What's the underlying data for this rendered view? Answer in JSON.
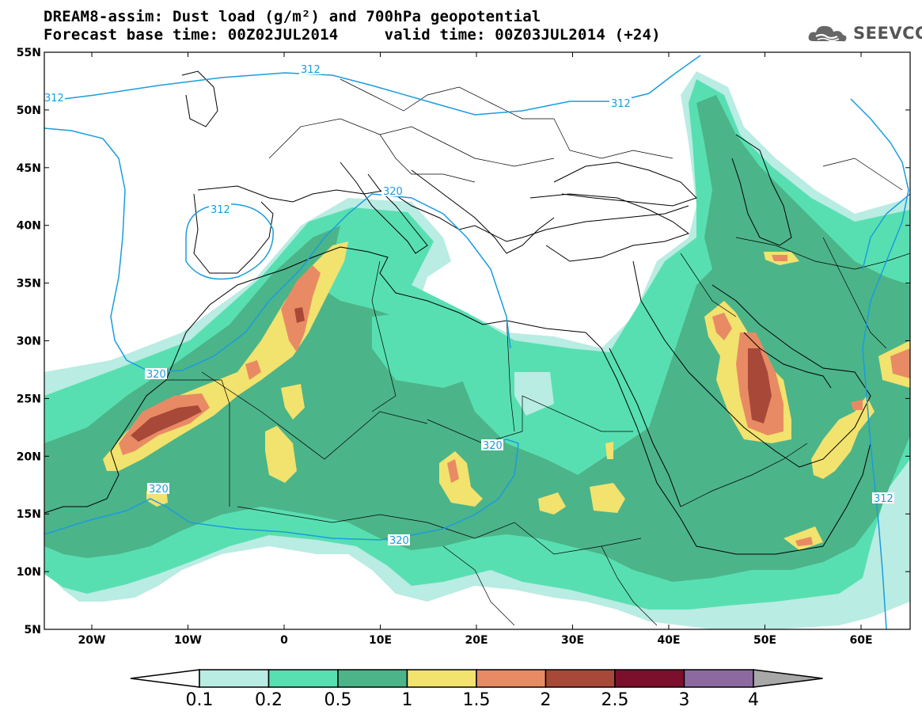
{
  "header": {
    "title_line1": "DREAM8-assim: Dust load (g/m²) and 700hPa geopotential",
    "title_line2": "Forecast base time: 00Z02JUL2014     valid time: 00Z03JUL2014 (+24)"
  },
  "logo": {
    "text": "SEEVCCC",
    "icon": "cloud-icon"
  },
  "map": {
    "lat_labels": [
      "55N",
      "50N",
      "45N",
      "40N",
      "35N",
      "30N",
      "25N",
      "20N",
      "15N",
      "10N",
      "5N"
    ],
    "lon_labels": [
      "20W",
      "10W",
      "0",
      "10E",
      "20E",
      "30E",
      "40E",
      "50E",
      "60E"
    ],
    "contour_labels": [
      {
        "text": "312",
        "contour": "north"
      },
      {
        "text": "312",
        "contour": "north-west"
      },
      {
        "text": "312",
        "contour": "north-east"
      },
      {
        "text": "312",
        "contour": "iberia"
      },
      {
        "text": "320",
        "contour": "mediterranean"
      },
      {
        "text": "320",
        "contour": "west-africa"
      },
      {
        "text": "320",
        "contour": "senegal"
      },
      {
        "text": "320",
        "contour": "sahel"
      },
      {
        "text": "320",
        "contour": "chad"
      },
      {
        "text": "312",
        "contour": "arabian-sea"
      }
    ]
  },
  "legend": {
    "title": "Dust load (g/m²)",
    "bins": [
      {
        "label": "0.1",
        "color": "#b9ece3"
      },
      {
        "label": "0.2",
        "color": "#58dfb1"
      },
      {
        "label": "0.5",
        "color": "#4cb489"
      },
      {
        "label": "1",
        "color": "#f2e26e"
      },
      {
        "label": "1.5",
        "color": "#e88b64"
      },
      {
        "label": "2",
        "color": "#a84838"
      },
      {
        "label": "2.5",
        "color": "#7c0f2c"
      },
      {
        "label": "3",
        "color": "#8c6aa0"
      },
      {
        "label": "4",
        "color": "#a8a8a8"
      }
    ],
    "under_color": "#ffffff",
    "over_color": "#a8a8a8"
  },
  "colors": {
    "contour": "#1a9cde",
    "coast": "#000000"
  }
}
